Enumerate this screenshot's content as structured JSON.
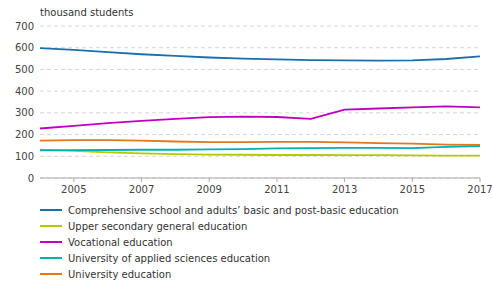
{
  "chart_data": {
    "type": "line",
    "ylabel": "thousand students",
    "x": [
      2004,
      2005,
      2006,
      2007,
      2008,
      2009,
      2010,
      2011,
      2012,
      2013,
      2014,
      2015,
      2016,
      2017
    ],
    "series": [
      {
        "name": "Comprehensive school and adults’ basic and post-basic education",
        "color": "#1a6faf",
        "values": [
          598,
          590,
          580,
          570,
          562,
          555,
          550,
          546,
          543,
          542,
          541,
          542,
          548,
          560
        ]
      },
      {
        "name": "Upper secondary general education",
        "color": "#b5c900",
        "values": [
          130,
          125,
          118,
          113,
          110,
          108,
          107,
          106,
          106,
          105,
          105,
          104,
          103,
          103
        ]
      },
      {
        "name": "Vocational education",
        "color": "#c000c0",
        "values": [
          228,
          240,
          253,
          263,
          272,
          280,
          283,
          281,
          272,
          315,
          320,
          325,
          330,
          325
        ]
      },
      {
        "name": "University of applied sciences education",
        "color": "#00b0b0",
        "values": [
          127,
          128,
          129,
          130,
          130,
          132,
          133,
          136,
          138,
          139,
          139,
          138,
          143,
          147
        ]
      },
      {
        "name": "University education",
        "color": "#e07820",
        "values": [
          172,
          174,
          174,
          172,
          168,
          165,
          165,
          166,
          166,
          164,
          161,
          158,
          154,
          152
        ]
      }
    ],
    "xlim": [
      2004,
      2017
    ],
    "xticks": [
      2005,
      2007,
      2009,
      2011,
      2013,
      2015,
      2017
    ],
    "ylim": [
      0,
      700
    ],
    "yticks": [
      0,
      100,
      200,
      300,
      400,
      500,
      600,
      700
    ],
    "grid": true,
    "legend": "bottom"
  }
}
